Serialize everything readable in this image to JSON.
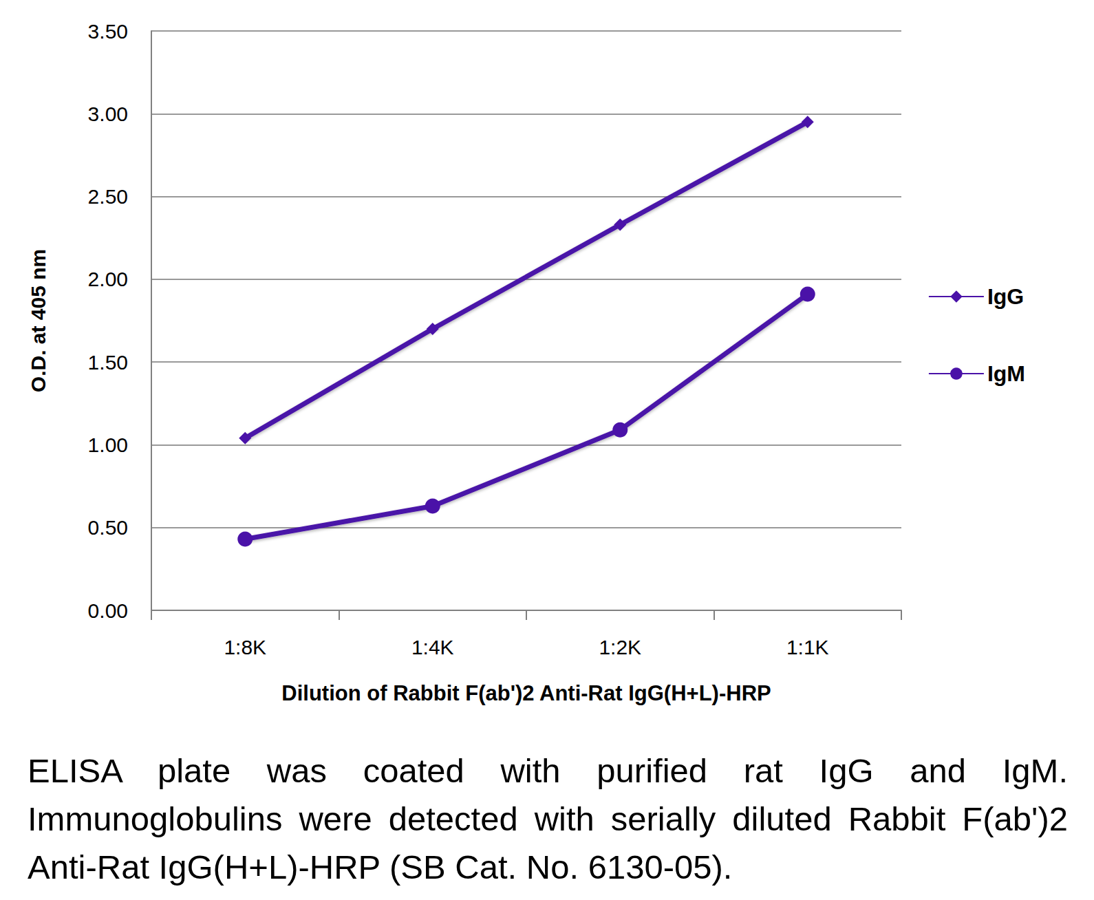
{
  "chart_data": {
    "type": "line",
    "x_label": "Dilution of Rabbit F(ab')2 Anti-Rat IgG(H+L)-HRP",
    "y_label": "O.D. at 405 nm",
    "caption": "ELISA plate was coated with purified rat IgG and IgM. Immunoglobulins were detected with serially diluted Rabbit F(ab')2 Anti-Rat IgG(H+L)-HRP (SB Cat. No. 6130-05).",
    "categories": [
      "1:8K",
      "1:4K",
      "1:2K",
      "1:1K"
    ],
    "series": [
      {
        "name": "IgG",
        "color": "#4a12a8",
        "marker": "diamond",
        "values": [
          1.04,
          1.7,
          2.33,
          2.95
        ]
      },
      {
        "name": "IgM",
        "color": "#4a12a8",
        "marker": "circle",
        "values": [
          0.43,
          0.63,
          1.09,
          1.91
        ]
      }
    ],
    "ylim": [
      0,
      3.5
    ],
    "yticks": [
      {
        "value": 0,
        "label": "0.00"
      },
      {
        "value": 0.5,
        "label": "0.50"
      },
      {
        "value": 1,
        "label": "1.00"
      },
      {
        "value": 1.5,
        "label": "1.50"
      },
      {
        "value": 2,
        "label": "2.00"
      },
      {
        "value": 2.5,
        "label": "2.50"
      },
      {
        "value": 3,
        "label": "3.00"
      },
      {
        "value": 3.5,
        "label": "3.50"
      }
    ],
    "grid": true,
    "legend": "right"
  }
}
